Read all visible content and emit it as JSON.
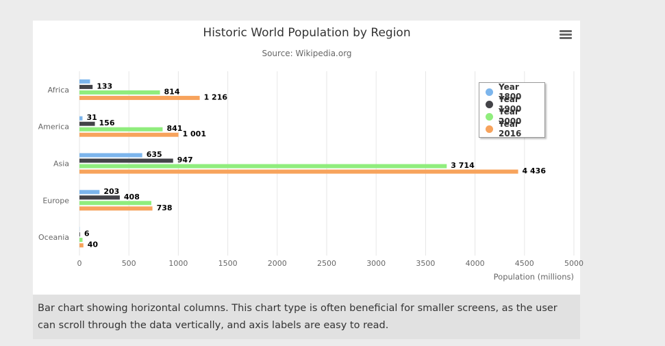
{
  "chart_data": {
    "type": "bar",
    "orientation": "horizontal",
    "title": "Historic World Population by Region",
    "subtitle": "Source: Wikipedia.org",
    "xlabel": "Population (millions)",
    "categories": [
      "Africa",
      "America",
      "Asia",
      "Europe",
      "Oceania"
    ],
    "xlim": [
      0,
      5000
    ],
    "ticks": [
      0,
      500,
      1000,
      1500,
      2000,
      2500,
      3000,
      3500,
      4000,
      4500,
      5000
    ],
    "grid": true,
    "legend_position": "top-right",
    "series": [
      {
        "name": "Year 1800",
        "color": "#7cb5ec",
        "values": [
          107,
          31,
          635,
          203,
          2
        ],
        "labels": [
          "",
          "31",
          "635",
          "203",
          ""
        ]
      },
      {
        "name": "Year 1900",
        "color": "#434348",
        "values": [
          133,
          156,
          947,
          408,
          6
        ],
        "labels": [
          "133",
          "156",
          "947",
          "408",
          "6"
        ]
      },
      {
        "name": "Year 2000",
        "color": "#90ed7d",
        "values": [
          814,
          841,
          3714,
          727,
          31
        ],
        "labels": [
          "814",
          "841",
          "3 714",
          "",
          ""
        ]
      },
      {
        "name": "Year 2016",
        "color": "#f7a35c",
        "values": [
          1216,
          1001,
          4436,
          738,
          40
        ],
        "labels": [
          "1 216",
          "1 001",
          "4 436",
          "738",
          "40"
        ]
      }
    ]
  },
  "caption": "Bar chart showing horizontal columns. This chart type is often beneficial for smaller screens, as the user can scroll through the data vertically, and axis labels are easy to read."
}
